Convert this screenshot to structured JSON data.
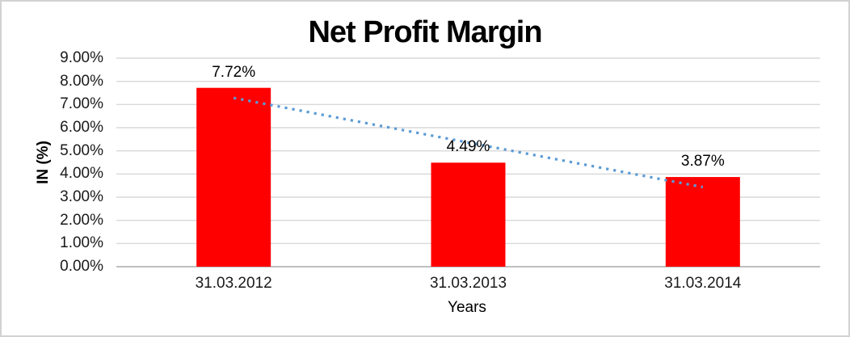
{
  "chart_data": {
    "type": "bar",
    "title": "Net Profit Margin",
    "xlabel": "Years",
    "ylabel": "IN (%)",
    "categories": [
      "31.03.2012",
      "31.03.2013",
      "31.03.2014"
    ],
    "values": [
      7.72,
      4.49,
      3.87
    ],
    "data_labels": [
      "7.72%",
      "4.49%",
      "3.87%"
    ],
    "y_ticks": [
      "9.00%",
      "8.00%",
      "7.00%",
      "6.00%",
      "5.00%",
      "4.00%",
      "3.00%",
      "2.00%",
      "1.00%",
      "0.00%"
    ],
    "y_tick_values": [
      9,
      8,
      7,
      6,
      5,
      4,
      3,
      2,
      1,
      0
    ],
    "ylim": [
      0,
      9
    ],
    "grid": true,
    "legend": "none",
    "bar_color": "#FF0000",
    "gridline_color": "#D9D9D9",
    "axis_line_color": "#BFBFBF",
    "text_color": "#000000",
    "trendline": {
      "type": "linear",
      "style": "dotted",
      "color": "#5B9BD5"
    }
  }
}
